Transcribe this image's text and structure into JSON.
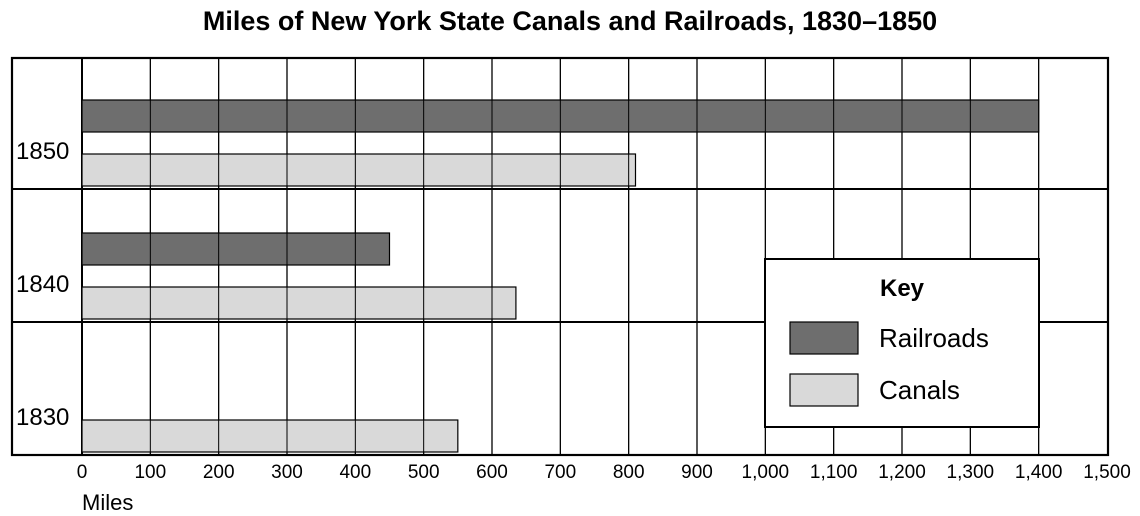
{
  "chart_data": {
    "type": "bar",
    "orientation": "horizontal",
    "title": "Miles of New York State Canals and Railroads, 1830–1850",
    "xlabel": "Miles",
    "ylabel": "",
    "xlim": [
      0,
      1500
    ],
    "grid": true,
    "legend_placement": "bottom-right",
    "legend_title": "Key",
    "categories": [
      "1850",
      "1840",
      "1830"
    ],
    "x_ticks": [
      0,
      100,
      200,
      300,
      400,
      500,
      600,
      700,
      800,
      900,
      1000,
      1100,
      1200,
      1300,
      1400,
      1500
    ],
    "x_tick_labels": [
      "0",
      "100",
      "200",
      "300",
      "400",
      "500",
      "600",
      "700",
      "800",
      "900",
      "1,000",
      "1,100",
      "1,200",
      "1,300",
      "1,400",
      "1,500"
    ],
    "series": [
      {
        "name": "Railroads",
        "color": "#6e6e6e",
        "values": [
          1400,
          450,
          0
        ]
      },
      {
        "name": "Canals",
        "color": "#d9d9d9",
        "values": [
          810,
          635,
          550
        ]
      }
    ]
  }
}
